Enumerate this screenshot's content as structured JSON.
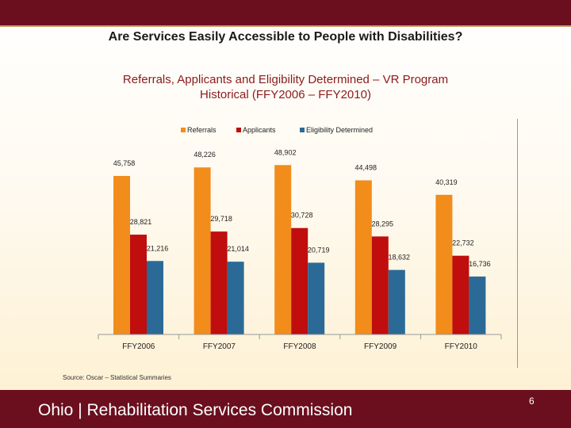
{
  "slide": {
    "title": "Are Services Easily Accessible to People with Disabilities?",
    "source": "Source: Oscar – Statistical Summaries",
    "footer_text": "Ohio | Rehabilitation Services Commission",
    "page_number": "6"
  },
  "colors": {
    "brand": "#6b0f1f",
    "referrals": "#f28c1b",
    "applicants": "#c00d0d",
    "eligibility": "#2b6a96"
  },
  "chart_data": {
    "type": "bar",
    "title": "Referrals, Applicants and Eligibility Determined – VR Program\nHistorical (FFY2006 – FFY2010)",
    "categories": [
      "FFY2006",
      "FFY2007",
      "FFY2008",
      "FFY2009",
      "FFY2010"
    ],
    "series": [
      {
        "name": "Referrals",
        "values": [
          45758,
          48226,
          48902,
          44498,
          40319
        ],
        "labels": [
          "45,758",
          "48,226",
          "48,902",
          "44,498",
          "40,319"
        ]
      },
      {
        "name": "Applicants",
        "values": [
          28821,
          29718,
          30728,
          28295,
          22732
        ],
        "labels": [
          "28,821",
          "29,718",
          "30,728",
          "28,295",
          "22,732"
        ]
      },
      {
        "name": "Eligibility Determined",
        "values": [
          21216,
          21014,
          20719,
          18632,
          16736
        ],
        "labels": [
          "21,216",
          "21,014",
          "20,719",
          "18,632",
          "16,736"
        ]
      }
    ],
    "legend_position": "top",
    "ylim": [
      0,
      54000
    ],
    "grid": false
  }
}
